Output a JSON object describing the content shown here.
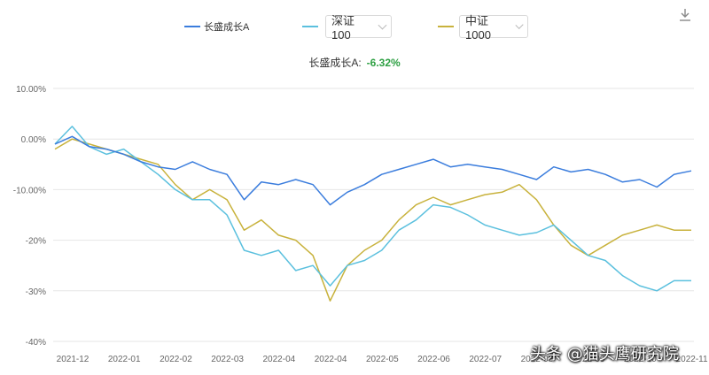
{
  "legend": {
    "fund": {
      "label": "长盛成长A",
      "color": "#3b7ddd"
    },
    "index1": {
      "label": "深证100",
      "color": "#5bc0de"
    },
    "index2": {
      "label": "中证1000",
      "color": "#c8b23c"
    }
  },
  "summary": {
    "label": "长盛成长A:",
    "value": "-6.32%"
  },
  "watermark": "头条 @猫头鹰研究院",
  "chart_data": {
    "type": "line",
    "ylim": [
      -40,
      10
    ],
    "y_ticks": [
      "10.00%",
      "0.00%",
      "-10.00%",
      "-20%",
      "-30%",
      "-40%"
    ],
    "y_tick_values": [
      10,
      0,
      -10,
      -20,
      -30,
      -40
    ],
    "x_ticks": [
      "2021-12",
      "2022-01",
      "2022-02",
      "2022-03",
      "2022-04",
      "2022-04",
      "2022-05",
      "2022-06",
      "2022-07",
      "2022-08",
      "2022-09",
      "2022-10",
      "2022-11"
    ],
    "x_tick_index": [
      0,
      3,
      6,
      9,
      12,
      15,
      18,
      21,
      24,
      27,
      30,
      33,
      36
    ],
    "n_points": 38,
    "series": [
      {
        "name": "长盛成长A",
        "color": "#3b7ddd",
        "values": [
          -1,
          0.5,
          -1.5,
          -2,
          -3,
          -4.5,
          -5.5,
          -6,
          -4.5,
          -6,
          -7,
          -12,
          -8.5,
          -9,
          -8,
          -9,
          -13,
          -10.5,
          -9,
          -7,
          -6,
          -5,
          -4,
          -5.5,
          -5,
          -5.5,
          -6,
          -7,
          -8,
          -5.5,
          -6.5,
          -6,
          -7,
          -8.5,
          -8,
          -9.5,
          -7,
          -6.3
        ]
      },
      {
        "name": "深证100",
        "color": "#5bc0de",
        "values": [
          -1,
          2.5,
          -1.5,
          -3,
          -2,
          -4.5,
          -7,
          -10,
          -12,
          -12,
          -15,
          -22,
          -23,
          -22,
          -26,
          -25,
          -29,
          -25,
          -24,
          -22,
          -18,
          -16,
          -13,
          -13.5,
          -15,
          -17,
          -18,
          -19,
          -18.5,
          -17,
          -20,
          -23,
          -24,
          -27,
          -29,
          -30,
          -28,
          -28
        ]
      },
      {
        "name": "中证1000",
        "color": "#c8b23c",
        "values": [
          -2,
          0,
          -1,
          -2,
          -3,
          -4,
          -5,
          -9,
          -12,
          -10,
          -12,
          -18,
          -16,
          -19,
          -20,
          -23,
          -32,
          -25,
          -22,
          -20,
          -16,
          -13,
          -11.5,
          -13,
          -12,
          -11,
          -10.5,
          -9,
          -12,
          -17,
          -21,
          -23,
          -21,
          -19,
          -18,
          -17,
          -18,
          -18
        ]
      }
    ]
  }
}
